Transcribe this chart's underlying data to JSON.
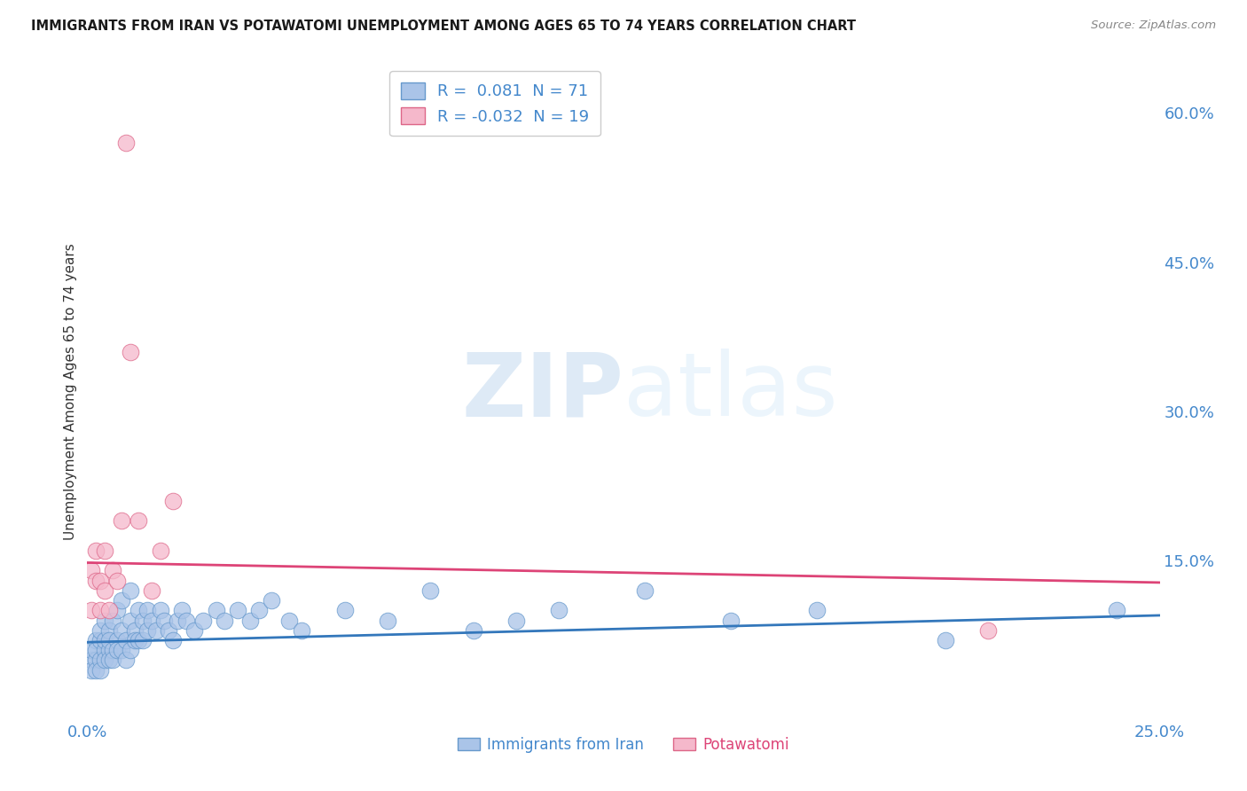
{
  "title": "IMMIGRANTS FROM IRAN VS POTAWATOMI UNEMPLOYMENT AMONG AGES 65 TO 74 YEARS CORRELATION CHART",
  "source": "Source: ZipAtlas.com",
  "ylabel": "Unemployment Among Ages 65 to 74 years",
  "xlim": [
    0.0,
    0.25
  ],
  "ylim": [
    -0.01,
    0.65
  ],
  "right_yticks": [
    0.0,
    0.15,
    0.3,
    0.45,
    0.6
  ],
  "right_yticklabels": [
    "",
    "15.0%",
    "30.0%",
    "45.0%",
    "60.0%"
  ],
  "background_color": "#ffffff",
  "grid_color": "#cccccc",
  "watermark_zip": "ZIP",
  "watermark_atlas": "atlas",
  "blue_color": "#aac4e8",
  "pink_color": "#f5b8cb",
  "blue_edge": "#6699cc",
  "pink_edge": "#dd6688",
  "trend_blue": "#3377bb",
  "trend_pink": "#dd4477",
  "legend_R_blue": "0.081",
  "legend_N_blue": "71",
  "legend_R_pink": "-0.032",
  "legend_N_pink": "19",
  "blue_points_x": [
    0.001,
    0.001,
    0.001,
    0.002,
    0.002,
    0.002,
    0.002,
    0.003,
    0.003,
    0.003,
    0.003,
    0.004,
    0.004,
    0.004,
    0.004,
    0.005,
    0.005,
    0.005,
    0.005,
    0.006,
    0.006,
    0.006,
    0.007,
    0.007,
    0.007,
    0.008,
    0.008,
    0.008,
    0.009,
    0.009,
    0.01,
    0.01,
    0.01,
    0.011,
    0.011,
    0.012,
    0.012,
    0.013,
    0.013,
    0.014,
    0.014,
    0.015,
    0.016,
    0.017,
    0.018,
    0.019,
    0.02,
    0.021,
    0.022,
    0.023,
    0.025,
    0.027,
    0.03,
    0.032,
    0.035,
    0.038,
    0.04,
    0.043,
    0.047,
    0.05,
    0.06,
    0.07,
    0.08,
    0.09,
    0.1,
    0.11,
    0.13,
    0.15,
    0.17,
    0.2,
    0.24
  ],
  "blue_points_y": [
    0.05,
    0.06,
    0.04,
    0.07,
    0.05,
    0.04,
    0.06,
    0.05,
    0.07,
    0.08,
    0.04,
    0.06,
    0.05,
    0.07,
    0.09,
    0.06,
    0.08,
    0.05,
    0.07,
    0.09,
    0.06,
    0.05,
    0.1,
    0.07,
    0.06,
    0.08,
    0.06,
    0.11,
    0.07,
    0.05,
    0.09,
    0.06,
    0.12,
    0.08,
    0.07,
    0.1,
    0.07,
    0.09,
    0.07,
    0.1,
    0.08,
    0.09,
    0.08,
    0.1,
    0.09,
    0.08,
    0.07,
    0.09,
    0.1,
    0.09,
    0.08,
    0.09,
    0.1,
    0.09,
    0.1,
    0.09,
    0.1,
    0.11,
    0.09,
    0.08,
    0.1,
    0.09,
    0.12,
    0.08,
    0.09,
    0.1,
    0.12,
    0.09,
    0.1,
    0.07,
    0.1
  ],
  "pink_points_x": [
    0.001,
    0.001,
    0.002,
    0.002,
    0.003,
    0.003,
    0.004,
    0.004,
    0.005,
    0.006,
    0.007,
    0.008,
    0.009,
    0.01,
    0.012,
    0.015,
    0.017,
    0.02,
    0.21
  ],
  "pink_points_y": [
    0.14,
    0.1,
    0.16,
    0.13,
    0.13,
    0.1,
    0.12,
    0.16,
    0.1,
    0.14,
    0.13,
    0.19,
    0.57,
    0.36,
    0.19,
    0.12,
    0.16,
    0.21,
    0.08
  ],
  "blue_trend_x": [
    0.0,
    0.25
  ],
  "blue_trend_y": [
    0.068,
    0.095
  ],
  "pink_trend_x": [
    0.0,
    0.25
  ],
  "pink_trend_y": [
    0.148,
    0.128
  ]
}
